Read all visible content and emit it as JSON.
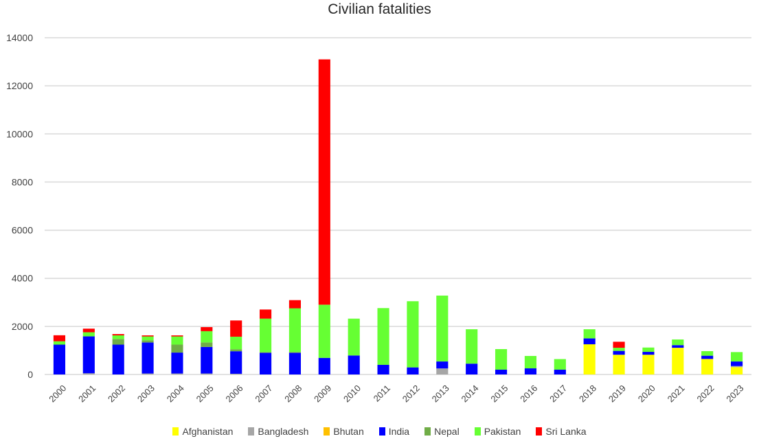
{
  "chart_data": {
    "type": "bar",
    "stacked": true,
    "title": "Civilian fatalities",
    "xlabel": "",
    "ylabel": "",
    "ylim": [
      0,
      14000
    ],
    "yticks": [
      0,
      2000,
      4000,
      6000,
      8000,
      10000,
      12000,
      14000
    ],
    "ytick_labels": [
      "0",
      "2000",
      "4000",
      "6000",
      "8000",
      "10000",
      "12000",
      "14000"
    ],
    "grid": true,
    "legend_position": "bottom",
    "categories": [
      "2000",
      "2001",
      "2002",
      "2003",
      "2004",
      "2005",
      "2006",
      "2007",
      "2008",
      "2009",
      "2010",
      "2011",
      "2012",
      "2013",
      "2014",
      "2015",
      "2016",
      "2017",
      "2018",
      "2019",
      "2020",
      "2021",
      "2022",
      "2023"
    ],
    "series": [
      {
        "name": "Afghanistan",
        "color": "#ffff00",
        "values": [
          0,
          0,
          0,
          0,
          0,
          0,
          0,
          0,
          0,
          0,
          0,
          0,
          0,
          0,
          0,
          0,
          0,
          0,
          1255,
          820,
          820,
          1110,
          645,
          305
        ]
      },
      {
        "name": "Bangladesh",
        "color": "#a6a6a6",
        "values": [
          0,
          50,
          0,
          40,
          40,
          40,
          30,
          0,
          0,
          0,
          0,
          0,
          0,
          250,
          0,
          0,
          0,
          0,
          0,
          0,
          0,
          0,
          0,
          45
        ]
      },
      {
        "name": "Bhutan",
        "color": "#ffc000",
        "values": [
          0,
          0,
          0,
          0,
          0,
          0,
          0,
          0,
          0,
          0,
          0,
          0,
          0,
          0,
          0,
          0,
          0,
          0,
          0,
          0,
          0,
          0,
          0,
          0
        ]
      },
      {
        "name": "India",
        "color": "#0000ff",
        "values": [
          1240,
          1535,
          1240,
          1290,
          870,
          1105,
          935,
          900,
          900,
          690,
          790,
          400,
          295,
          290,
          450,
          200,
          255,
          200,
          245,
          160,
          120,
          110,
          135,
          190
        ]
      },
      {
        "name": "Nepal",
        "color": "#70ad47",
        "values": [
          0,
          0,
          235,
          90,
          330,
          185,
          85,
          30,
          35,
          0,
          0,
          0,
          0,
          0,
          0,
          0,
          0,
          0,
          0,
          0,
          0,
          0,
          0,
          0
        ]
      },
      {
        "name": "Pakistan",
        "color": "#66ff33",
        "values": [
          140,
          170,
          150,
          160,
          340,
          470,
          520,
          1390,
          1815,
          2210,
          1530,
          2360,
          2750,
          2740,
          1430,
          855,
          515,
          440,
          380,
          130,
          180,
          235,
          190,
          390
        ]
      },
      {
        "name": "Sri Lanka",
        "color": "#ff0000",
        "values": [
          250,
          150,
          55,
          45,
          45,
          170,
          675,
          380,
          340,
          10200,
          0,
          0,
          0,
          0,
          0,
          0,
          0,
          0,
          0,
          250,
          0,
          0,
          0,
          0
        ]
      }
    ]
  }
}
